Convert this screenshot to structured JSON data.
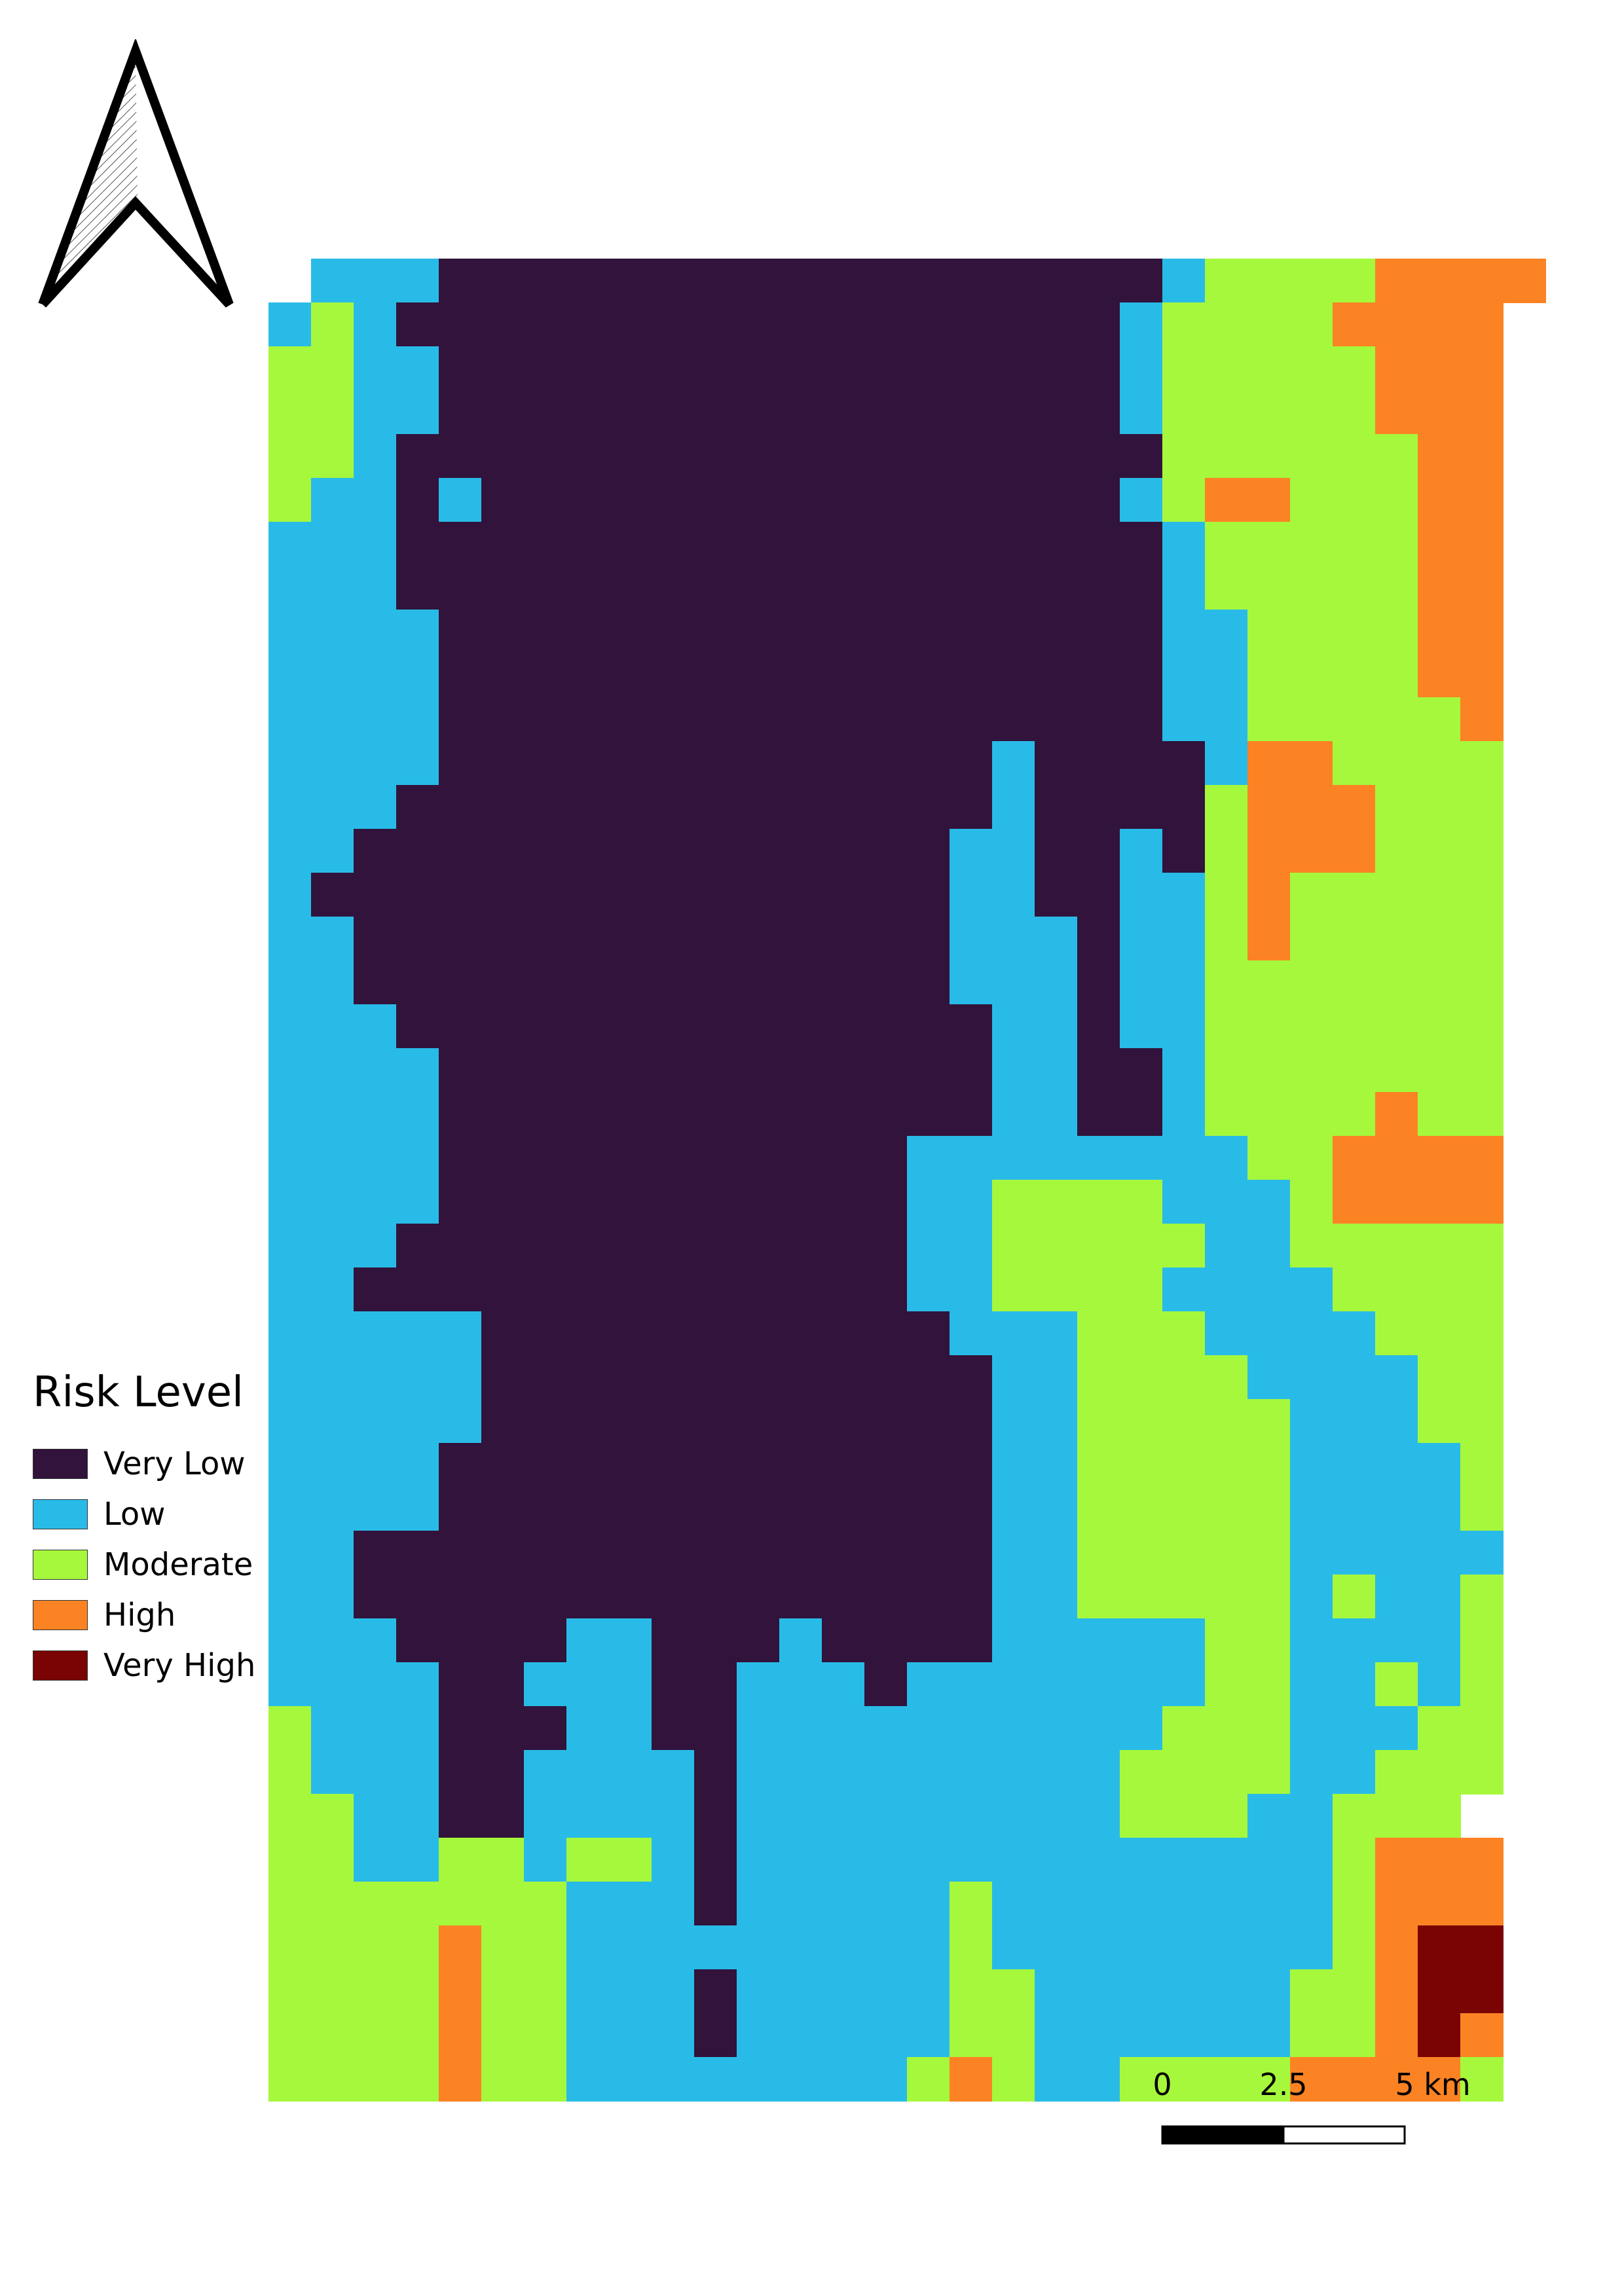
{
  "legend": {
    "title": "Risk Level",
    "items": [
      {
        "key": "VL",
        "label": "Very Low",
        "color": "#31133b"
      },
      {
        "key": "L",
        "label": "Low",
        "color": "#29bbe8"
      },
      {
        "key": "M",
        "label": "Moderate",
        "color": "#a6f83c"
      },
      {
        "key": "H",
        "label": "High",
        "color": "#fb8324"
      },
      {
        "key": "VH",
        "label": "Very High",
        "color": "#7a0403"
      }
    ]
  },
  "scale_bar": {
    "tick_labels": [
      "0",
      "2.5",
      "5 km"
    ]
  },
  "north_arrow": {
    "icon": "north-arrow-icon"
  },
  "risk_grid": {
    "codes": {
      ".": null,
      "V": "VL",
      "L": "L",
      "M": "M",
      "H": "H",
      "X": "VH"
    },
    "rows": [
      ".LLLVVVVVVVVVVVVVVVVVLMMMMHHHH",
      "LMLVVVVVVVVVVVVVVVVVLMMMMHHHH",
      "MMLLVVVVVVVVVVVVVVVVLMMMMMHHH",
      "MMLLVVVVVVVVVVVVVVVVLMMMMMHHH",
      "MMLVVVVVVVVVVVVVVVVVVMMMMMMHH",
      "MLLVLVVVVVVVVVVVVVVVLMHHMMMHH",
      "LLLVVVVVVVVVVVVVVVVVVLMMMMMHH",
      "LLLVVVVVVVVVVVVVVVVVVLMMMMMHH",
      "LLLLVVVVVVVVVVVVVVVVVLLMMMMHH",
      "LLLLVVVVVVVVVVVVVVVVVLLMMMMHH",
      "LLLLVVVVVVVVVVVVVVVVVLLMMMMMH",
      "LLLLVVVVVVVVVVVVVLVVVVLHHMMMM",
      "LLLVVVVVVVVVVVVVVLVVVVMHHHMMM",
      "LLVVVVVVVVVVVVVVLLVVLVMHHHMMM",
      "LVVVVVVVVVVVVVVVLLVVLLMHMMMMM",
      "LLVVVVVVVVVVVVVVLLLVLLMHMMMMM",
      "LLVVVVVVVVVVVVVVLLLVLLMMMMMMM",
      "LLLVVVVVVVVVVVVVVLLVLLMMMMMMM",
      "LLLLVVVVVVVVVVVVVLLVVLMMMMMMM",
      "LLLLVVVVVVVVVVVVVLLVVLMMMMHMM",
      "LLLLVVVVVVVVVVVLLLLLLLLMMHHHH",
      "LLLLVVVVVVVVVVVLLMMMMLLLMHHHH",
      "LLLVVVVVVVVVVVVLLMMMMMLLMMMMM",
      "LLVVVVVVVVVVVVVLLMMMMLLLLMMMM",
      "LLLLLVVVVVVVVVVVLLLMMMLLLLMMM",
      "LLLLLVVVVVVVVVVVVLLMMMMLLLLMM",
      "LLLLLVVVVVVVVVVVVLLMMMMMLLLMM",
      "LLLLVVVVVVVVVVVVVLLMMMMMLLLLM",
      "LLLLVVVVVVVVVVVVVLLMMMMMLLLLM",
      "LLVVVVVVVVVVVVVVVLLMMMMMLLLLL",
      "LLVVVVVVVVVVVVVVVLLMMMMMLMLLM",
      "LLLVVVVLLVVVLVVVVLLLLLMMLLLLM",
      "LLLLVVLLLVVLLLVLLLLLLLMMLLMLM",
      "MLLLVVVLLVVLLLLLLLLLLMMMLLLMM",
      "MLLLVVLLLLVLLLLLLLLLMMMMLLMMM",
      "MMLLVVLLLLVLLLLLLLLLMMMLLMMM.",
      "MMLLMMLMMLVLLLLLLLLLLLLLLMHHH.",
      "MMMMMMMLLLVLLLLLMLLLLLLLLMHHH.",
      "MMMMHMMLLLLLLLLLMLLLLLLLLMHXX.",
      "MMMMHMMLLLVLLLLLMMLLLLLLMMHXX.",
      "MMMMHMMLLLVLLLLLMMLLLLLLMMHXH.",
      "MMMMHMMLLLLLLLLMHMLLMMMMHHHHM."
    ]
  }
}
